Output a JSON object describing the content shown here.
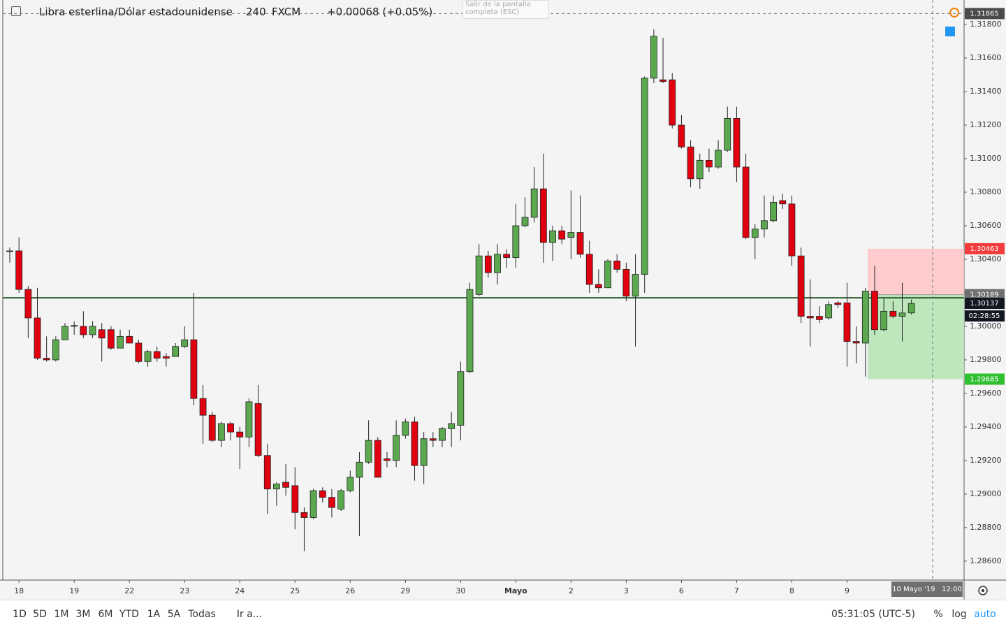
{
  "header": {
    "symbol": "Libra esterlina/Dólar estadounidense",
    "interval": "240",
    "source": "FXCM",
    "change": "+0.00068 (+0.05%)",
    "tooltip": [
      "Salir de la pantalla",
      "completa (ESC)"
    ]
  },
  "chart_data": {
    "type": "candlestick",
    "categories": [
      null,
      "18",
      null,
      null,
      null,
      null,
      null,
      "19",
      null,
      null,
      null,
      null,
      null,
      "22",
      null,
      null,
      null,
      null,
      null,
      "23",
      null,
      null,
      null,
      null,
      null,
      "24",
      null,
      null,
      null,
      null,
      null,
      "25",
      null,
      null,
      null,
      null,
      null,
      "26",
      null,
      null,
      null,
      null,
      null,
      "29",
      null,
      null,
      null,
      null,
      null,
      "30",
      null,
      null,
      null,
      null,
      null,
      "Mayo",
      null,
      null,
      null,
      null,
      null,
      "2",
      null,
      null,
      null,
      null,
      null,
      "3",
      null,
      null,
      null,
      null,
      null,
      "6",
      null,
      null,
      null,
      null,
      null,
      "7",
      null,
      null,
      null,
      null,
      null,
      "8",
      null,
      null,
      null,
      null,
      null,
      "9",
      null,
      null,
      null,
      null,
      null,
      null,
      null
    ],
    "open": [
      1.3045,
      1.3045,
      1.3022,
      1.3005,
      1.2981,
      1.298,
      1.2992,
      1.3,
      1.3,
      1.2995,
      1.2998,
      1.2998,
      1.2987,
      1.2994,
      1.299,
      1.2979,
      1.2985,
      1.2982,
      1.2982,
      1.2988,
      1.2992,
      1.2957,
      1.2947,
      1.2932,
      1.2942,
      1.2937,
      1.2934,
      1.2954,
      1.2923,
      1.2903,
      1.2907,
      1.2905,
      1.2889,
      1.2886,
      1.2902,
      1.2898,
      1.2891,
      1.2902,
      1.291,
      1.2919,
      1.2932,
      1.2921,
      1.292,
      1.2935,
      1.2943,
      1.2917,
      1.2933,
      1.2932,
      1.2939,
      1.2941,
      1.2973,
      1.3019,
      1.3042,
      1.3032,
      1.3043,
      1.3041,
      1.306,
      1.3065,
      1.3082,
      1.305,
      1.3057,
      1.3053,
      1.3056,
      1.3043,
      1.3025,
      1.3023,
      1.3039,
      1.3034,
      1.3018,
      1.3031,
      1.3148,
      1.3147,
      1.3147,
      1.312,
      1.3107,
      1.3088,
      1.3099,
      1.3095,
      1.3105,
      1.3124,
      1.3095,
      1.3053,
      1.3058,
      1.3063,
      1.3075,
      1.3073,
      1.3042,
      1.3006,
      1.3006,
      1.3005,
      1.3014,
      1.3014,
      1.2991,
      1.299,
      1.3021,
      1.2998,
      1.3009,
      1.3006,
      1.3008
    ],
    "high": [
      1.3047,
      1.3053,
      1.3024,
      1.3023,
      1.2994,
      1.2994,
      1.3002,
      1.3003,
      1.3009,
      1.3003,
      1.3002,
      1.3,
      1.2998,
      1.2998,
      1.2992,
      1.2986,
      1.2988,
      1.2984,
      1.299,
      1.3,
      1.302,
      1.2965,
      1.2949,
      1.2943,
      1.2943,
      1.294,
      1.2957,
      1.2965,
      1.293,
      1.2907,
      1.2918,
      1.2916,
      1.2892,
      1.2903,
      1.2904,
      1.2903,
      1.2903,
      1.2914,
      1.2925,
      1.2944,
      1.2934,
      1.2925,
      1.2944,
      1.2945,
      1.2946,
      1.2937,
      1.2937,
      1.294,
      1.2949,
      1.2979,
      1.3026,
      1.3049,
      1.3045,
      1.3049,
      1.3046,
      1.3073,
      1.3077,
      1.3095,
      1.3103,
      1.306,
      1.306,
      1.3081,
      1.3078,
      1.3051,
      1.3034,
      1.304,
      1.3043,
      1.3038,
      1.3043,
      1.3149,
      1.3177,
      1.3172,
      1.3151,
      1.3126,
      1.3111,
      1.3103,
      1.3106,
      1.3111,
      1.3131,
      1.3131,
      1.3103,
      1.3061,
      1.3078,
      1.3078,
      1.3079,
      1.3078,
      1.3047,
      1.3028,
      1.3012,
      1.3015,
      1.3015,
      1.3026,
      1.3,
      1.3023,
      1.3036,
      1.3017,
      1.3015,
      1.3026,
      1.3016
    ],
    "low": [
      1.3038,
      1.302,
      1.2993,
      1.298,
      1.2979,
      1.2979,
      1.2992,
      1.2995,
      1.2993,
      1.2993,
      1.2979,
      1.2986,
      1.2987,
      1.299,
      1.2978,
      1.2976,
      1.2979,
      1.2976,
      1.2982,
      1.2987,
      1.2953,
      1.293,
      1.2931,
      1.2928,
      1.2932,
      1.2915,
      1.2928,
      1.2922,
      1.2888,
      1.2893,
      1.2899,
      1.2879,
      1.2866,
      1.2885,
      1.2895,
      1.2886,
      1.289,
      1.2901,
      1.2875,
      1.2918,
      1.291,
      1.2916,
      1.2916,
      1.2933,
      1.2908,
      1.2906,
      1.2928,
      1.2928,
      1.2928,
      1.2932,
      1.2972,
      1.3018,
      1.3029,
      1.3025,
      1.3035,
      1.3035,
      1.3059,
      1.3062,
      1.3038,
      1.3039,
      1.3049,
      1.304,
      1.3041,
      1.302,
      1.302,
      1.3023,
      1.3032,
      1.3015,
      1.2988,
      1.302,
      1.3145,
      1.3145,
      1.3118,
      1.3106,
      1.3083,
      1.3082,
      1.3092,
      1.3094,
      1.3104,
      1.3086,
      1.3052,
      1.304,
      1.3053,
      1.3062,
      1.307,
      1.3036,
      1.3002,
      1.2988,
      1.3002,
      1.3004,
      1.3011,
      1.2976,
      1.2978,
      1.297,
      1.2995,
      1.2997,
      1.3005,
      1.2991,
      1.3007
    ],
    "close": [
      1.3045,
      1.3022,
      1.3005,
      1.2981,
      1.298,
      1.2992,
      1.3,
      1.30005,
      1.2995,
      1.3,
      1.2993,
      1.2987,
      1.2994,
      1.299,
      1.2979,
      1.2985,
      1.2981,
      1.2981,
      1.2988,
      1.2992,
      1.2957,
      1.2947,
      1.2932,
      1.2942,
      1.2937,
      1.2934,
      1.2955,
      1.2923,
      1.2903,
      1.2906,
      1.2904,
      1.2889,
      1.2886,
      1.2902,
      1.2898,
      1.2892,
      1.2902,
      1.291,
      1.2919,
      1.2932,
      1.291,
      1.292,
      1.2935,
      1.2943,
      1.2917,
      1.2933,
      1.2932,
      1.2939,
      1.2942,
      1.2973,
      1.3022,
      1.3042,
      1.3032,
      1.3043,
      1.3041,
      1.306,
      1.3065,
      1.3082,
      1.305,
      1.3057,
      1.3052,
      1.3056,
      1.3043,
      1.3025,
      1.3023,
      1.3039,
      1.3034,
      1.3018,
      1.3031,
      1.3148,
      1.3173,
      1.3146,
      1.312,
      1.3107,
      1.3088,
      1.3099,
      1.3095,
      1.3105,
      1.3124,
      1.3095,
      1.3053,
      1.3058,
      1.3063,
      1.3074,
      1.3073,
      1.3042,
      1.3006,
      1.3005,
      1.3004,
      1.3013,
      1.3013,
      1.2991,
      1.299,
      1.3021,
      1.2998,
      1.3009,
      1.3006,
      1.3008,
      1.30137
    ],
    "up_color": "#5ba84f",
    "down_color": "#e0000f",
    "ylim": [
      1.28487,
      1.31946
    ],
    "yticks": [
      {
        "value": 1.286,
        "label": "1.28600"
      },
      {
        "value": 1.288,
        "label": "1.28800"
      },
      {
        "value": 1.29,
        "label": "1.29000"
      },
      {
        "value": 1.292,
        "label": "1.29200"
      },
      {
        "value": 1.294,
        "label": "1.29400"
      },
      {
        "value": 1.296,
        "label": "1.29600"
      },
      {
        "value": 1.298,
        "label": "1.29800"
      },
      {
        "value": 1.3,
        "label": "1.30000"
      },
      {
        "value": 1.302,
        "label": "1.30200"
      },
      {
        "value": 1.304,
        "label": "1.30400"
      },
      {
        "value": 1.306,
        "label": "1.30600"
      },
      {
        "value": 1.308,
        "label": "1.30800"
      },
      {
        "value": 1.31,
        "label": "1.31000"
      },
      {
        "value": 1.312,
        "label": "1.31200"
      },
      {
        "value": 1.314,
        "label": "1.31400"
      },
      {
        "value": 1.316,
        "label": "1.31600"
      },
      {
        "value": 1.318,
        "label": "1.31800"
      }
    ],
    "grid": false,
    "horizontal_line": 1.3017,
    "position": {
      "target": 1.30463,
      "entry": 1.30189,
      "stop": 1.29685
    },
    "last_price": 1.30137,
    "countdown": "02:28:55",
    "crosshair": {
      "price": 1.31865,
      "time": "10 Mayo '19   12:00"
    }
  },
  "toolbar": {
    "ranges": [
      "1D",
      "5D",
      "1M",
      "3M",
      "6M",
      "YTD",
      "1A",
      "5A",
      "Todas"
    ],
    "goto": "Ir a...",
    "clock": "05:31:05 (UTC-5)",
    "percent": "%",
    "log": "log",
    "auto": "auto"
  }
}
